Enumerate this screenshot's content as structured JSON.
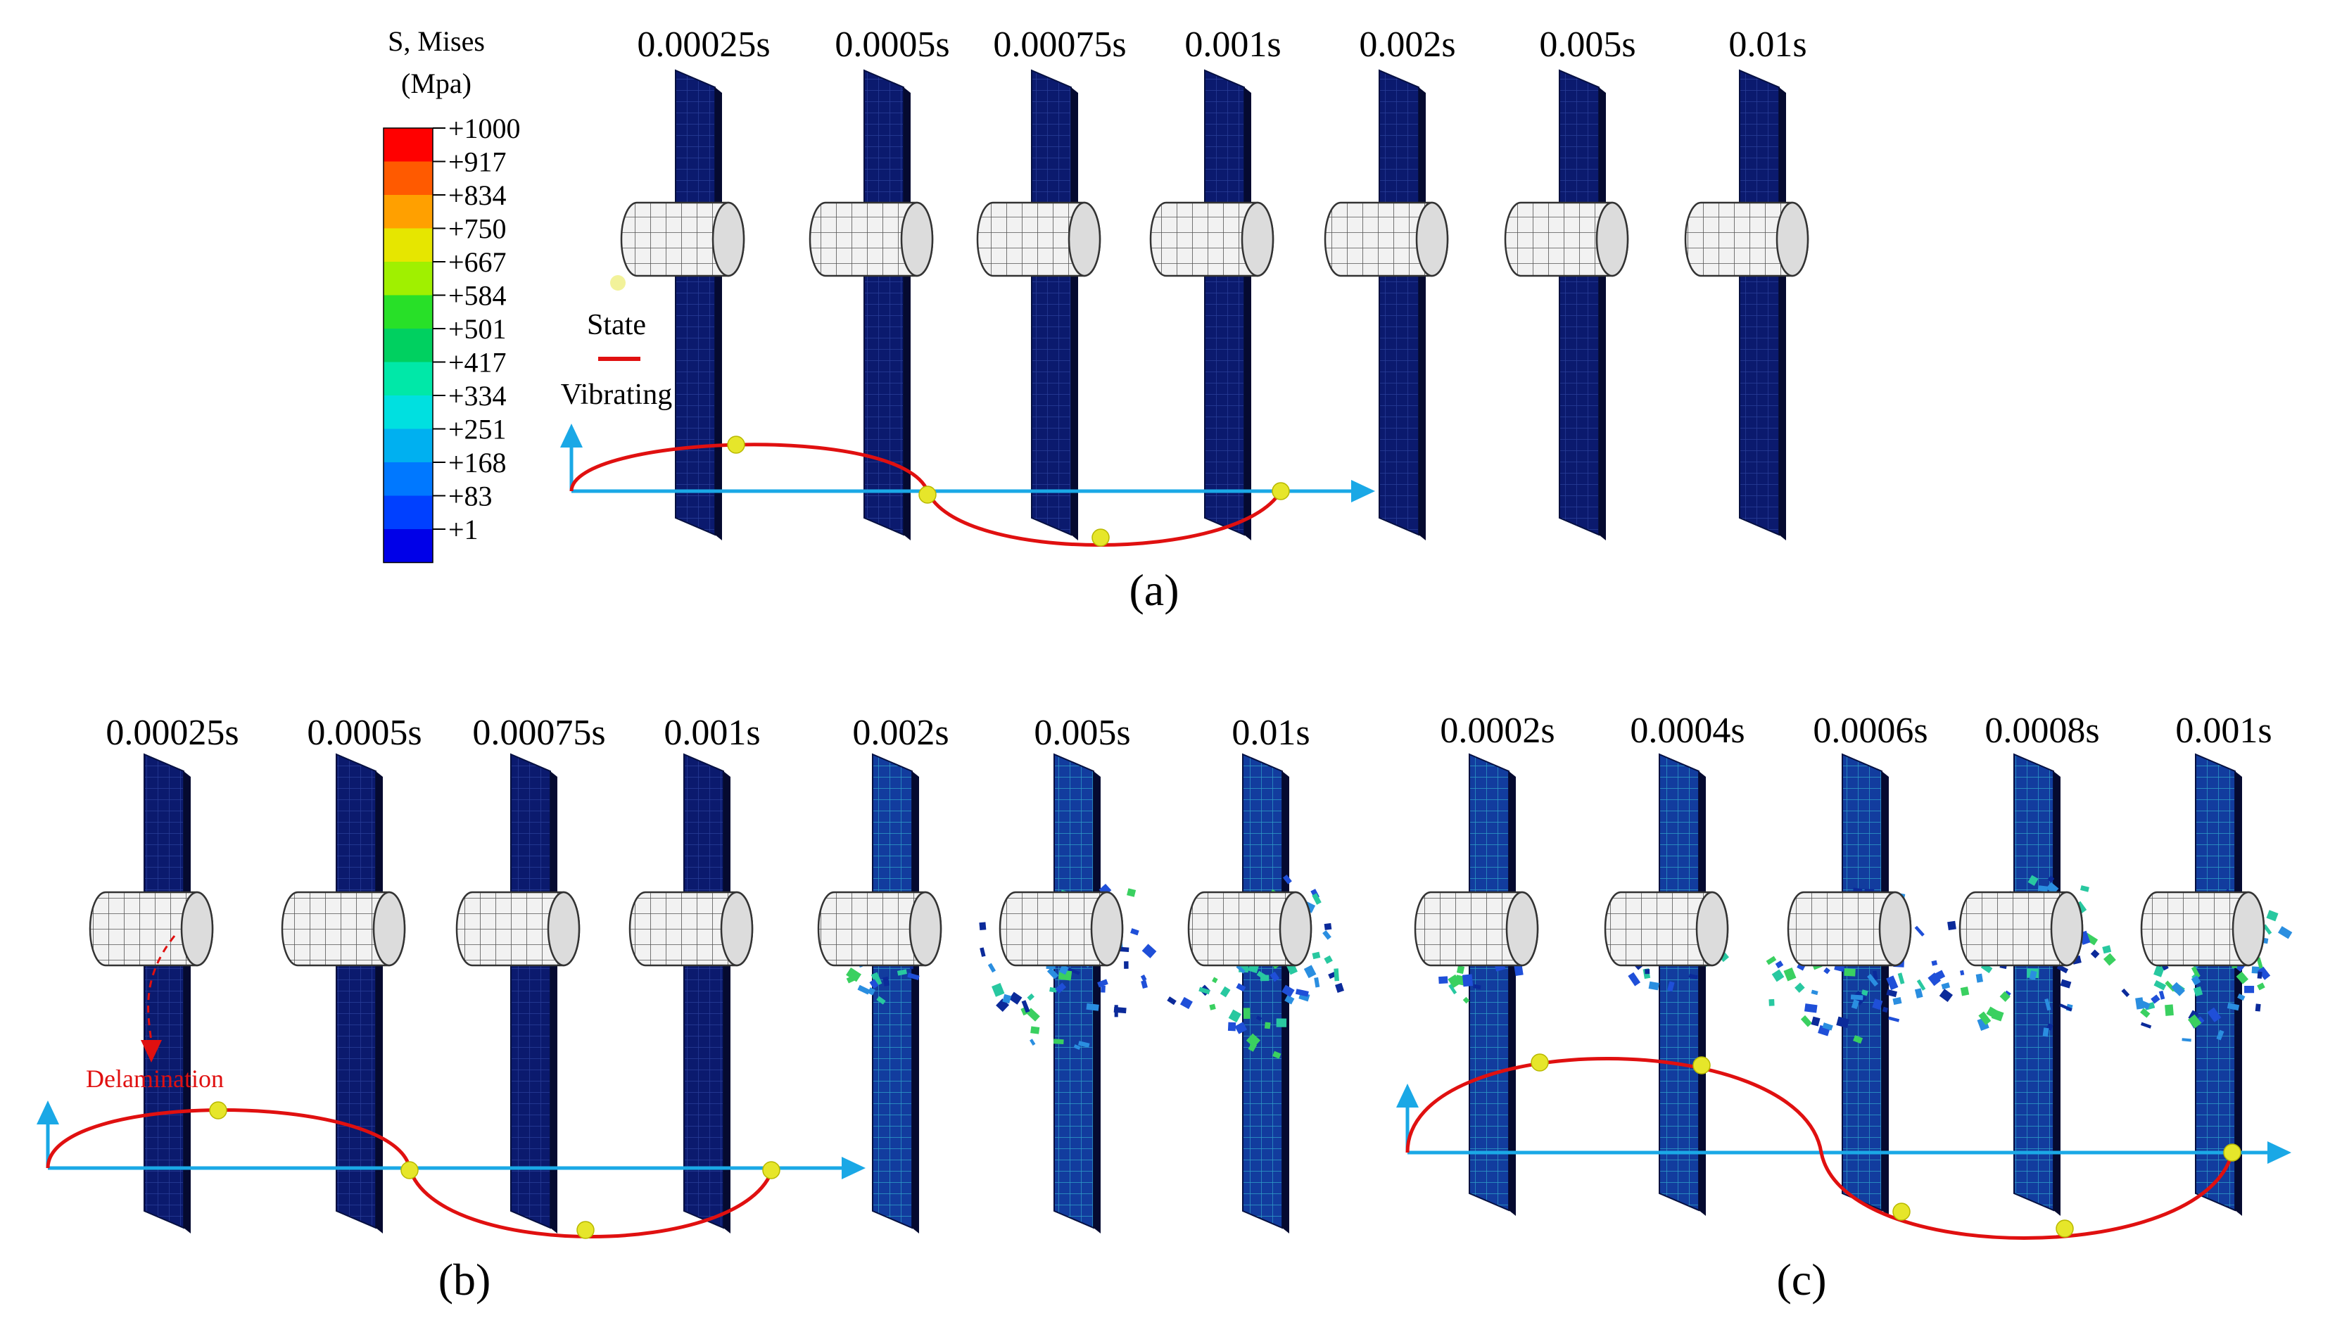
{
  "legend": {
    "title_line1": "S, Mises",
    "title_line2": "(Mpa)",
    "values": [
      "+1000",
      "+917",
      "+834",
      "+750",
      "+667",
      "+584",
      "+501",
      "+417",
      "+334",
      "+251",
      "+168",
      "+83",
      "+1"
    ],
    "band_colors": [
      "#ff0000",
      "#ff5a00",
      "#ffa000",
      "#e6e600",
      "#a0f000",
      "#28e028",
      "#00d060",
      "#00e8a8",
      "#00e0e0",
      "#00b0f0",
      "#0078ff",
      "#0040ff",
      "#0000e8"
    ]
  },
  "state_label": "State",
  "vibrating_label": "Vibrating",
  "delamination_label": "Delamination",
  "panels": [
    {
      "label": "(a)",
      "letter": "a",
      "times": [
        "0.00025s",
        "0.0005s",
        "0.00075s",
        "0.001s",
        "0.002s",
        "0.005s",
        "0.01s"
      ]
    },
    {
      "label": "(b)",
      "letter": "b",
      "times": [
        "0.00025s",
        "0.0005s",
        "0.00075s",
        "0.001s",
        "0.002s",
        "0.005s",
        "0.01s"
      ]
    },
    {
      "label": "(c)",
      "letter": "c",
      "times": [
        "0.0002s",
        "0.0004s",
        "0.0006s",
        "0.0008s",
        "0.001s"
      ]
    }
  ],
  "colors": {
    "plate_blue": "#0a1560",
    "axis_blue": "#1aa8e6",
    "vibration_red": "#e01010",
    "state_yellow": "#e6e62a"
  },
  "icons": {
    "plate": "meshed-plate-icon",
    "projectile": "cylindrical-projectile-icon"
  }
}
